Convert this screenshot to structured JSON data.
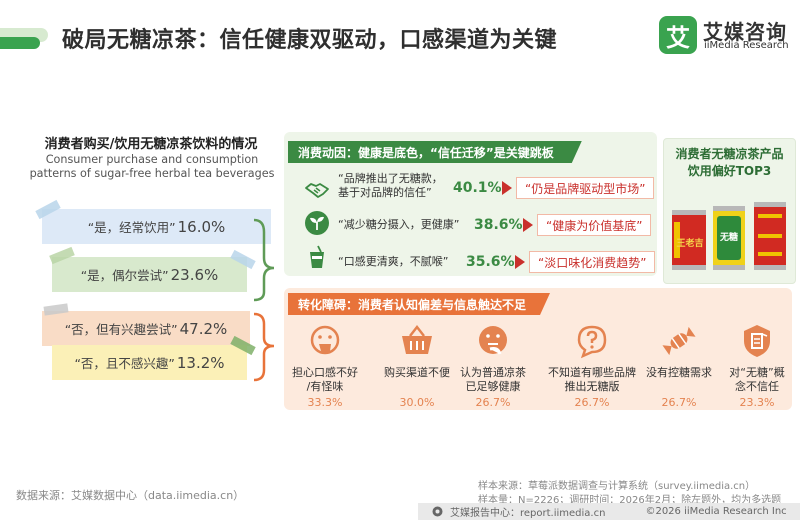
{
  "header": {
    "title": "破局无糖凉茶：信任健康双驱动，口感渠道为关键",
    "logo_char": "艾",
    "logo_cn": "艾媒咨询",
    "logo_en": "iiMedia Research"
  },
  "left": {
    "title_cn": "消费者购买/饮用无糖凉茶饮料的情况",
    "title_en_1": "Consumer purchase and consumption",
    "title_en_2": "patterns of sugar-free herbal tea beverages",
    "tags": [
      {
        "label": "“是，经常饮用”",
        "value": "16.0%"
      },
      {
        "label": "“是，偶尔尝试”",
        "value": "23.6%"
      },
      {
        "label": "“否，但有兴趣尝试”",
        "value": "47.2%"
      },
      {
        "label": "“否，且不感兴趣”",
        "value": "13.2%"
      }
    ],
    "colors": {
      "blue": "#dde9f7",
      "green": "#d8e9cd",
      "orange": "#f9dcc6",
      "yellow": "#fbf0b7",
      "bracket": "#5f9b57",
      "bracket2": "#e8733a"
    }
  },
  "motivation": {
    "header": "消费动因：健康是底色，“信任迁移”是关键跳板",
    "rows": [
      {
        "icon": "handshake-icon",
        "text1": "“品牌推出了无糖款，",
        "text2": "基于对品牌的信任”",
        "value": "40.1%",
        "tag": "“仍是品牌驱动型市场”"
      },
      {
        "icon": "sprout-icon",
        "text1": "“减少糖分摄入，更健康”",
        "text2": "",
        "value": "38.6%",
        "tag": "“健康为价值基底”"
      },
      {
        "icon": "drink-cup-icon",
        "text1": "“口感更清爽，不腻喉”",
        "text2": "",
        "value": "35.6%",
        "tag": "“淡口味化消费趋势”"
      }
    ]
  },
  "top3": {
    "title_1": "消费者无糖凉茶产品",
    "title_2": "饮用偏好TOP3",
    "can1_text": "王老吉",
    "can2_text": "无糖"
  },
  "barriers": {
    "header": "转化障碍：消费者认知偏差与信息触达不足",
    "items": [
      {
        "icon": "tongue-face-icon",
        "text1": "担心口感不好",
        "text2": "/有怪味",
        "value": "33.3%"
      },
      {
        "icon": "shopping-basket-icon",
        "text1": "购买渠道不便",
        "text2": "",
        "value": "30.0%"
      },
      {
        "icon": "thinking-face-icon",
        "text1": "认为普通凉茶",
        "text2": "已足够健康",
        "value": "26.7%"
      },
      {
        "icon": "question-bubble-icon",
        "text1": "不知道有哪些品牌",
        "text2": "推出无糖版",
        "value": "26.7%"
      },
      {
        "icon": "candy-icon",
        "text1": "没有控糖需求",
        "text2": "",
        "value": "26.7%"
      },
      {
        "icon": "shield-icon",
        "text1": "对“无糖”概",
        "text2": "念不信任",
        "value": "23.3%"
      }
    ]
  },
  "footer": {
    "source": "数据来源：艾媒数据中心（data.iimedia.cn）",
    "sample1": "样本来源：草莓派数据调查与计算系统（survey.iimedia.cn）",
    "sample2": "样本量：N=2226；调研时间：2026年2月；除左题外，均为多选题",
    "report": "艾媒报告中心：report.iimedia.cn",
    "copyright": "©2026  iiMedia Research  Inc"
  }
}
